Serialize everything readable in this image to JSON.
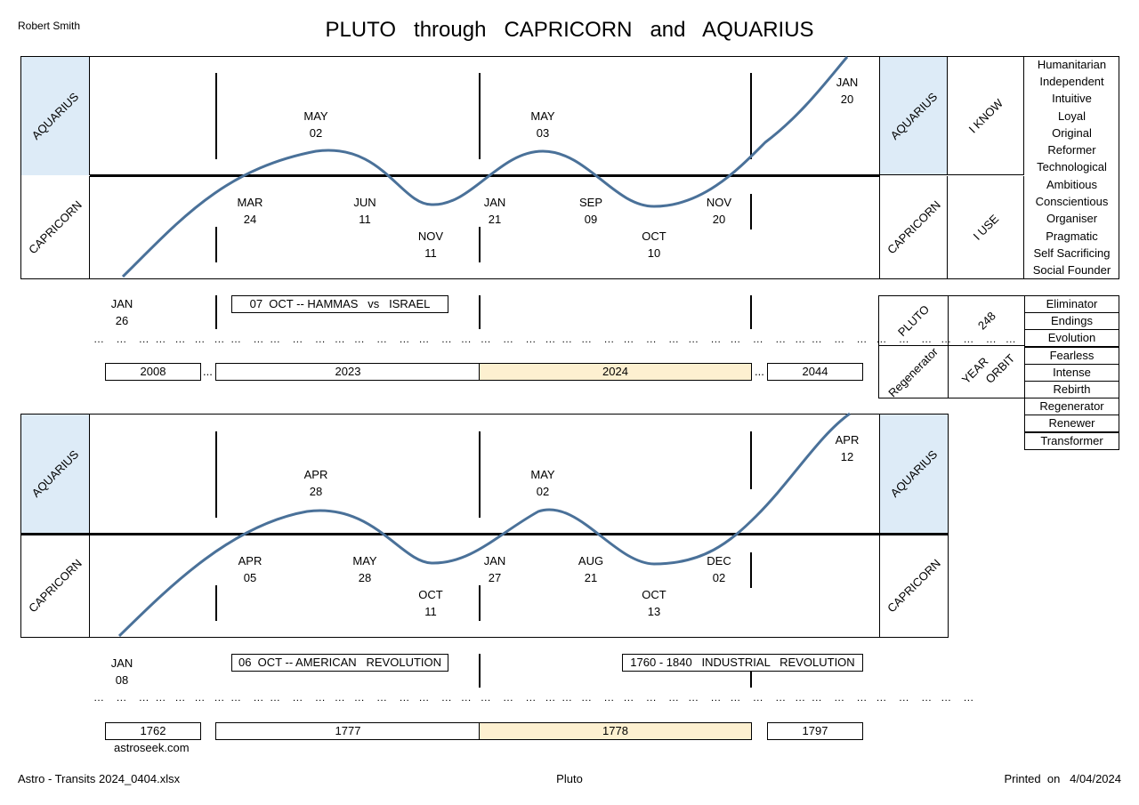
{
  "header": {
    "author": "Robert Smith",
    "title": "PLUTO   through   CAPRICORN   and   AQUARIUS"
  },
  "signs": {
    "aquarius": "AQUARIUS",
    "capricorn": "CAPRICORN"
  },
  "side": {
    "i_know": "I KNOW",
    "i_use": "I USE",
    "aquarius_traits": [
      "Humanitarian",
      "Independent",
      "Intuitive",
      "Loyal",
      "Original",
      "Reformer",
      "Technological"
    ],
    "capricorn_traits": [
      "Ambitious",
      "Conscientious",
      "Organiser",
      "Pragmatic",
      "Self Sacrificing",
      "Social Founder"
    ],
    "pluto": "PLUTO",
    "regenerator": "Regenerator",
    "orbit_number": "248",
    "year": "YEAR",
    "orbit": "ORBIT",
    "pluto_traits": [
      "Eliminator",
      "Endings",
      "Evolution",
      "Fearless",
      "Intense",
      "Rebirth",
      "Regenerator",
      "Renewer",
      "Transformer"
    ]
  },
  "panel1": {
    "dates_top": [
      {
        "m": "MAY",
        "d": "02"
      },
      {
        "m": "MAY",
        "d": "03"
      },
      {
        "m": "JAN",
        "d": "20"
      }
    ],
    "dates_mid": [
      {
        "m": "MAR",
        "d": "24"
      },
      {
        "m": "JUN",
        "d": "11"
      },
      {
        "m": "JAN",
        "d": "21"
      },
      {
        "m": "SEP",
        "d": "09"
      },
      {
        "m": "NOV",
        "d": "20"
      }
    ],
    "dates_low": [
      {
        "m": "NOV",
        "d": "11"
      },
      {
        "m": "OCT",
        "d": "10"
      }
    ],
    "start": {
      "m": "JAN",
      "d": "26"
    },
    "event": "07  OCT -- HAMMAS   vs   ISRAEL",
    "years": [
      "2008",
      "2023",
      "2024",
      "2044"
    ],
    "ellipsis": "..."
  },
  "panel2": {
    "dates_top": [
      {
        "m": "APR",
        "d": "28"
      },
      {
        "m": "MAY",
        "d": "02"
      },
      {
        "m": "APR",
        "d": "12"
      }
    ],
    "dates_mid": [
      {
        "m": "APR",
        "d": "05"
      },
      {
        "m": "MAY",
        "d": "28"
      },
      {
        "m": "JAN",
        "d": "27"
      },
      {
        "m": "AUG",
        "d": "21"
      },
      {
        "m": "DEC",
        "d": "02"
      }
    ],
    "dates_low": [
      {
        "m": "OCT",
        "d": "11"
      },
      {
        "m": "OCT",
        "d": "13"
      }
    ],
    "start": {
      "m": "JAN",
      "d": "08"
    },
    "event1": "06  OCT -- AMERICAN   REVOLUTION",
    "event2": "1760 - 1840   INDUSTRIAL   REVOLUTION",
    "years": [
      "1762",
      "1777",
      "1778",
      "1797"
    ],
    "source": "astroseek.com"
  },
  "footer": {
    "file": "Astro - Transits 2024_0404.xlsx",
    "sheet": "Pluto",
    "printed": "Printed  on   4/04/2024"
  },
  "colors": {
    "curve": "#4a7199",
    "sign_fill": "#ddebf7",
    "highlight": "#fdf0d0"
  }
}
